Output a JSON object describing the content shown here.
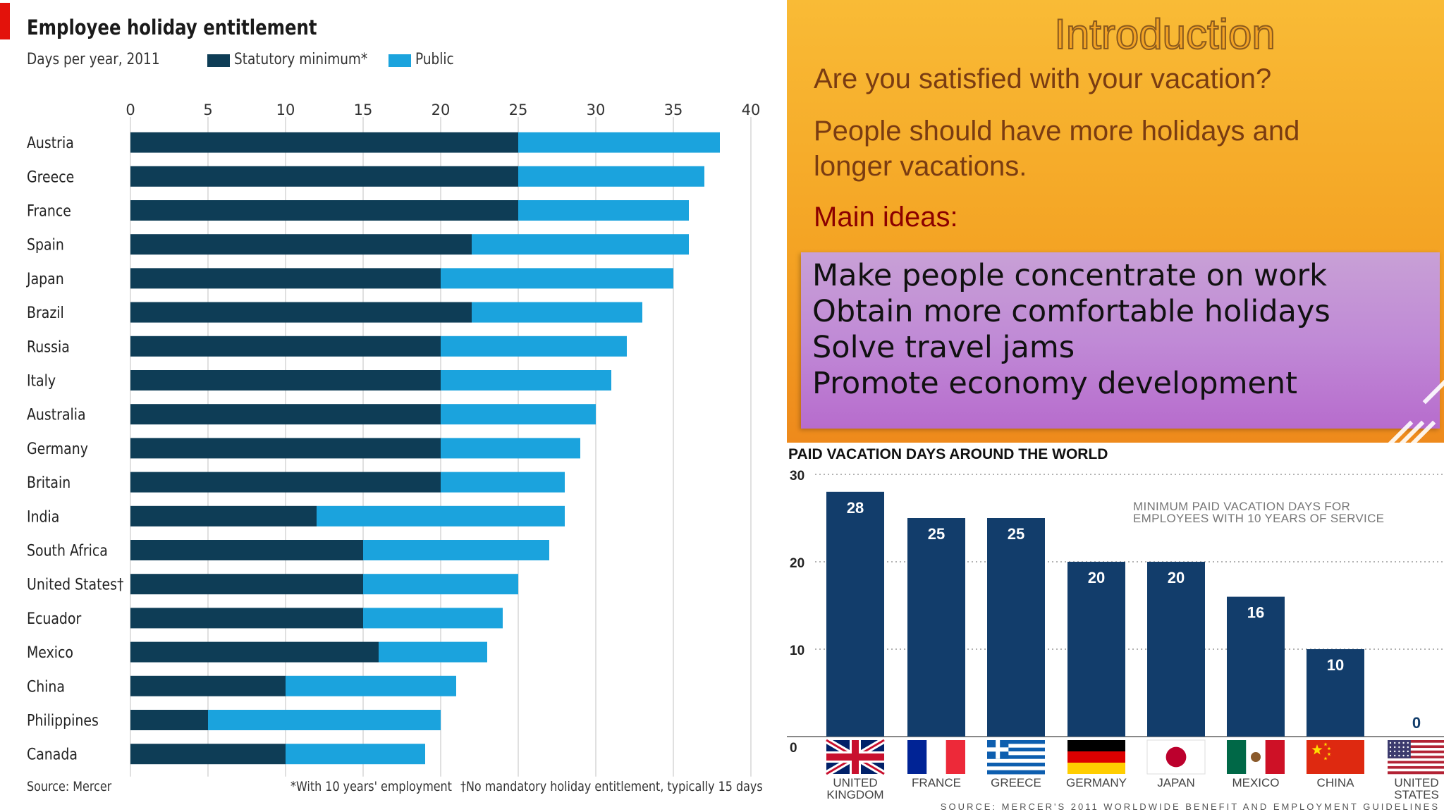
{
  "left_chart": {
    "title": "Employee holiday entitlement",
    "subtitle": "Days per year, 2011",
    "legend": [
      {
        "label": "Statutory minimum*",
        "color": "#0e3d56"
      },
      {
        "label": "Public",
        "color": "#1ba3dd"
      }
    ],
    "footnotes": {
      "source": "Source: Mercer",
      "note1": "*With 10 years' employment",
      "note2": "†No mandatory holiday entitlement, typically 15 days"
    }
  },
  "right_top": {
    "title": "Introduction",
    "question": "Are you satisfied with your vacation?",
    "statement_line1": "People should have more holidays and",
    "statement_line2": "longer vacations.",
    "main_label": "Main ideas:",
    "ideas": [
      "Make people concentrate on work",
      "Obtain more comfortable holidays",
      "Solve travel jams",
      "Promote economy development"
    ]
  },
  "right_bottom": {
    "title": "PAID VACATION DAYS AROUND THE WORLD",
    "note": "MINIMUM PAID VACATION DAYS FOR\nEMPLOYEES WITH 10 YEARS OF SERVICE",
    "source": "SOURCE: MERCER'S 2011 WORLDWIDE BENEFIT AND EMPLOYMENT GUIDELINES"
  },
  "chart_data": [
    {
      "type": "bar",
      "orientation": "horizontal",
      "stacked": true,
      "title": "Employee holiday entitlement",
      "subtitle": "Days per year, 2011",
      "categories": [
        "Austria",
        "Greece",
        "France",
        "Spain",
        "Japan",
        "Brazil",
        "Russia",
        "Italy",
        "Australia",
        "Germany",
        "Britain",
        "India",
        "South Africa",
        "United States†",
        "Ecuador",
        "Mexico",
        "China",
        "Philippines",
        "Canada"
      ],
      "series": [
        {
          "name": "Statutory minimum*",
          "color": "#0e3d56",
          "values": [
            25,
            25,
            25,
            22,
            20,
            22,
            20,
            20,
            20,
            20,
            20,
            12,
            15,
            15,
            15,
            16,
            10,
            5,
            10
          ]
        },
        {
          "name": "Public",
          "color": "#1ba3dd",
          "values": [
            13,
            12,
            11,
            14,
            15,
            11,
            12,
            11,
            10,
            9,
            8,
            16,
            12,
            10,
            9,
            7,
            11,
            15,
            9
          ]
        }
      ],
      "xlim": [
        0,
        40
      ],
      "xticks": [
        0,
        5,
        10,
        15,
        20,
        25,
        30,
        35,
        40
      ],
      "grid": true,
      "legend_position": "top"
    },
    {
      "type": "bar",
      "title": "PAID VACATION DAYS AROUND THE WORLD",
      "categories": [
        "UNITED KINGDOM",
        "FRANCE",
        "GREECE",
        "GERMANY",
        "JAPAN",
        "MEXICO",
        "CHINA",
        "UNITED STATES"
      ],
      "values": [
        28,
        25,
        25,
        20,
        20,
        16,
        10,
        0
      ],
      "ylim": [
        0,
        30
      ],
      "yticks": [
        0,
        10,
        20,
        30
      ],
      "bar_color": "#123d6b",
      "grid": true,
      "flag_icons": [
        "uk-flag-icon",
        "france-flag-icon",
        "greece-flag-icon",
        "germany-flag-icon",
        "japan-flag-icon",
        "mexico-flag-icon",
        "china-flag-icon",
        "usa-flag-icon"
      ]
    }
  ]
}
